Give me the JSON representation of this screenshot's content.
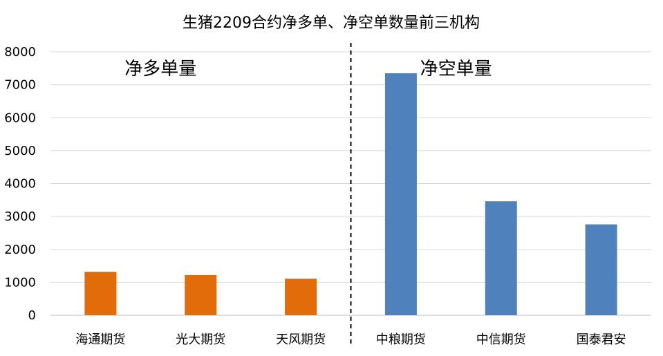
{
  "chart_data": {
    "type": "bar",
    "title": "生猪2209合约净多单、净空单数量前三机构",
    "categories": [
      "海通期货",
      "光大期货",
      "天风期货",
      "中粮期货",
      "中信期货",
      "国泰君安"
    ],
    "values": [
      1320,
      1220,
      1110,
      7350,
      3460,
      2760
    ],
    "groups": [
      {
        "label": "净多单量",
        "categories": [
          "海通期货",
          "光大期货",
          "天风期货"
        ],
        "color": "#E36C0A"
      },
      {
        "label": "净空单量",
        "categories": [
          "中粮期货",
          "中信期货",
          "国泰君安"
        ],
        "color": "#4F81BD"
      }
    ],
    "colors": [
      "#E36C0A",
      "#E36C0A",
      "#E36C0A",
      "#4F81BD",
      "#4F81BD",
      "#4F81BD"
    ],
    "ylim": [
      0,
      8000
    ],
    "yticks": [
      0,
      1000,
      2000,
      3000,
      4000,
      5000,
      6000,
      7000,
      8000
    ],
    "grid": true,
    "legend": "none"
  }
}
